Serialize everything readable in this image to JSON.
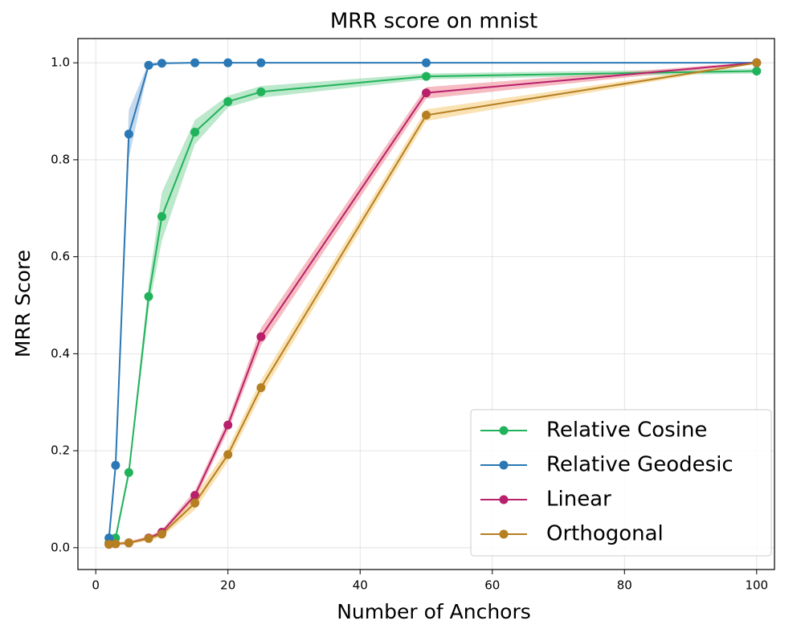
{
  "chart_data": {
    "type": "line",
    "title": "MRR score on mnist",
    "xlabel": "Number of Anchors",
    "ylabel": "MRR Score",
    "x": [
      2,
      3,
      5,
      8,
      10,
      15,
      20,
      25,
      50,
      100
    ],
    "series": [
      {
        "name": "Relative Cosine",
        "color": "#21b35b",
        "band_color": "#8fd9a8",
        "values": [
          0.01,
          0.02,
          0.155,
          0.518,
          0.683,
          0.857,
          0.92,
          0.94,
          0.972,
          0.983
        ],
        "err": [
          0.005,
          0.008,
          0.01,
          0.025,
          0.05,
          0.025,
          0.012,
          0.012,
          0.006,
          0.005
        ]
      },
      {
        "name": "Relative Geodesic",
        "color": "#2a78b5",
        "band_color": "#9ec0e3",
        "values": [
          0.02,
          0.17,
          0.853,
          0.995,
          0.999,
          1.0,
          1.0,
          1.0,
          1.0,
          1.0
        ],
        "err": [
          0.005,
          0.02,
          0.05,
          0.005,
          0.002,
          0.001,
          0.001,
          0.001,
          0.001,
          0.001
        ]
      },
      {
        "name": "Linear",
        "color": "#b8206c",
        "band_color": "#f0909a",
        "values": [
          0.007,
          0.008,
          0.01,
          0.02,
          0.032,
          0.108,
          0.253,
          0.435,
          0.938,
          1.0
        ],
        "err": [
          0.003,
          0.003,
          0.003,
          0.004,
          0.005,
          0.01,
          0.012,
          0.018,
          0.012,
          0.002
        ]
      },
      {
        "name": "Orthogonal",
        "color": "#b57f22",
        "band_color": "#f7cf80",
        "values": [
          0.007,
          0.008,
          0.01,
          0.019,
          0.028,
          0.092,
          0.192,
          0.33,
          0.892,
          1.0
        ],
        "err": [
          0.003,
          0.003,
          0.003,
          0.004,
          0.006,
          0.014,
          0.014,
          0.016,
          0.012,
          0.002
        ]
      }
    ],
    "xlim": [
      -2.7,
      102.7
    ],
    "xticks": [
      0,
      20,
      40,
      60,
      80,
      100
    ],
    "ylim": [
      -0.045,
      1.05
    ],
    "yticks": [
      {
        "value": 0,
        "label": "0.0"
      },
      {
        "value": 0.2,
        "label": "0.2"
      },
      {
        "value": 0.4,
        "label": "0.4"
      },
      {
        "value": 0.6,
        "label": "0.6"
      },
      {
        "value": 0.8,
        "label": "0.8"
      },
      {
        "value": 1,
        "label": "1.0"
      }
    ],
    "grid": true,
    "legend": "lower right"
  }
}
